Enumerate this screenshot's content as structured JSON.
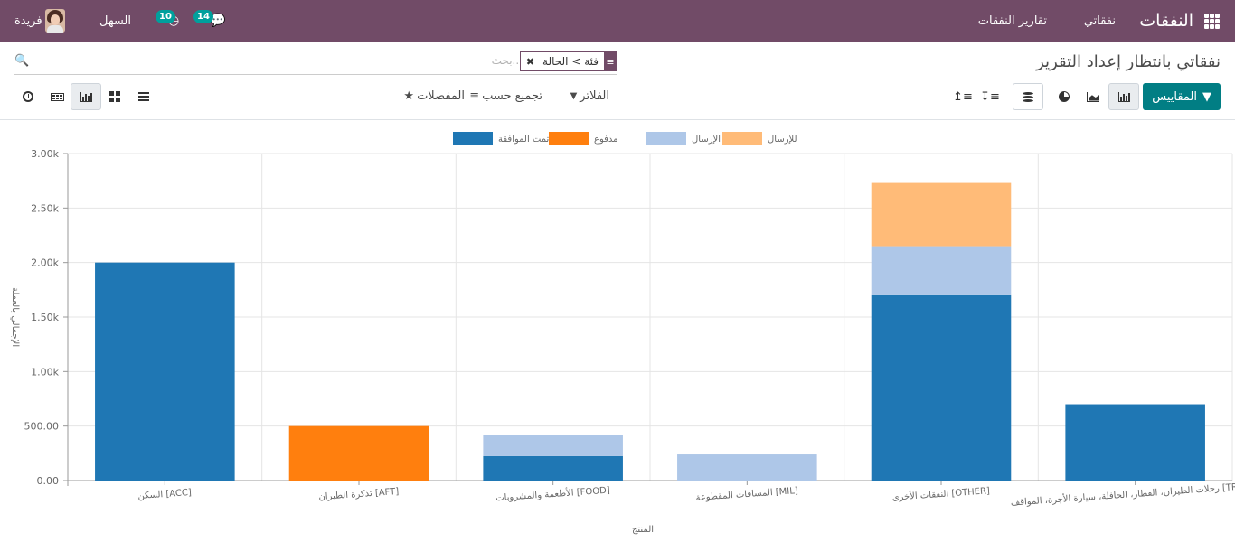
{
  "navbar": {
    "brand": "النفقات",
    "menu": [
      "نفقاتي",
      "تقارير النفقات"
    ],
    "company": "السهل",
    "user_name": "فريدة",
    "chat_count": "14",
    "activity_count": "10",
    "bg_color": "#714b67"
  },
  "control_panel": {
    "breadcrumb": "نفقاتي بانتظار إعداد التقرير",
    "search_placeholder": "بحث...",
    "facet_value": "فئة > الحالة",
    "measures_label": "المقاييس",
    "filters_label": "الفلاتر",
    "groupby_label": "تجميع حسب",
    "favorites_label": "المفضلات",
    "accent_color": "#017e84"
  },
  "chart_data": {
    "type": "bar",
    "stacked": true,
    "categories": [
      "[ACC] السكن",
      "[AFT] تذكرة الطيران",
      "[FOOD] الأطعمة والمشروبات",
      "[MIL] المسافات المقطوعة",
      "[OTHER] النفقات الأخرى",
      "[TRANS] رحلات الطيران، القطار، الحافلة، سيارة الأجرة، المواقف"
    ],
    "series": [
      {
        "name": "تمت الموافقة",
        "color": "#1f77b4",
        "values": [
          2000,
          0,
          225,
          0,
          1700,
          700
        ]
      },
      {
        "name": "مدفوع",
        "color": "#ff7f0e",
        "values": [
          0,
          500,
          0,
          0,
          0,
          0
        ]
      },
      {
        "name": "تم الإرسال",
        "color": "#aec7e8",
        "values": [
          0,
          0,
          190,
          240,
          450,
          0
        ]
      },
      {
        "name": "للإرسال",
        "color": "#ffbb78",
        "values": [
          0,
          0,
          0,
          0,
          580,
          0
        ]
      }
    ],
    "yticks": [
      "0.00",
      "500.00",
      "1.00k",
      "1.50k",
      "2.00k",
      "2.50k",
      "3.00k"
    ],
    "ylim": [
      0,
      3000
    ],
    "xlabel": "المنتج",
    "ylabel": "الإجمالي بالعملة",
    "grid": true,
    "legend_position": "top"
  }
}
